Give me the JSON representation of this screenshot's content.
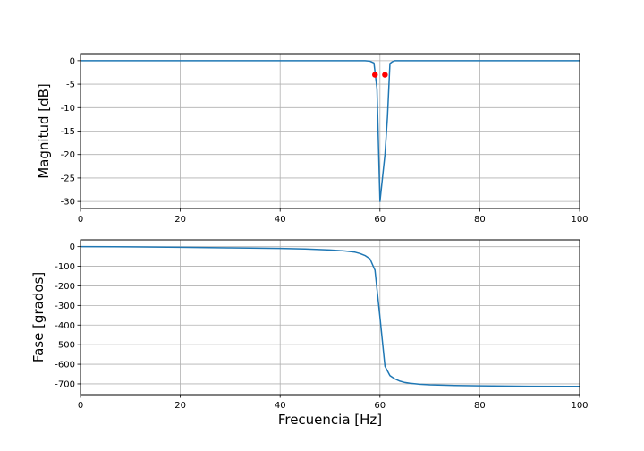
{
  "chart_data": [
    {
      "type": "line",
      "ylabel": "Magnitud [dB]",
      "xlabel": "",
      "xlim": [
        0,
        100
      ],
      "ylim": [
        -31.5,
        1.5
      ],
      "xticks": [
        0,
        20,
        40,
        60,
        80,
        100
      ],
      "yticks": [
        0,
        -5,
        -10,
        -15,
        -20,
        -25,
        -30
      ],
      "grid": true,
      "series": [
        {
          "color": "#1f77b4",
          "x": [
            0,
            10,
            20,
            30,
            40,
            50,
            55,
            57,
            58,
            58.8,
            59.4,
            60,
            60.5,
            61,
            61.5,
            62,
            62.5,
            63,
            65,
            70,
            80,
            90,
            100
          ],
          "y": [
            0,
            0,
            0,
            0,
            0,
            0,
            0,
            0,
            -0.1,
            -0.5,
            -6,
            -30,
            -25,
            -20,
            -12,
            -0.6,
            -0.2,
            0,
            0,
            0,
            0,
            0,
            0
          ]
        }
      ],
      "markers": {
        "color": "#ff0000",
        "points": [
          {
            "x": 59,
            "y": -3
          },
          {
            "x": 61,
            "y": -3
          }
        ]
      }
    },
    {
      "type": "line",
      "ylabel": "Fase [grados]",
      "xlabel": "Frecuencia [Hz]",
      "xlim": [
        0,
        100
      ],
      "ylim": [
        -755,
        35
      ],
      "xticks": [
        0,
        20,
        40,
        60,
        80,
        100
      ],
      "yticks": [
        0,
        -100,
        -200,
        -300,
        -400,
        -500,
        -600,
        -700
      ],
      "grid": true,
      "series": [
        {
          "color": "#1f77b4",
          "x": [
            0,
            10,
            20,
            30,
            40,
            45,
            50,
            53,
            55,
            56,
            57,
            58,
            59,
            60,
            61,
            62,
            63,
            64,
            65,
            66,
            68,
            70,
            75,
            80,
            90,
            100
          ],
          "y": [
            0,
            -1,
            -3,
            -6,
            -9,
            -12,
            -17,
            -22,
            -28,
            -35,
            -45,
            -62,
            -120,
            -360,
            -610,
            -658,
            -675,
            -686,
            -693,
            -697,
            -702,
            -705,
            -708,
            -710,
            -712,
            -713
          ]
        }
      ]
    }
  ]
}
